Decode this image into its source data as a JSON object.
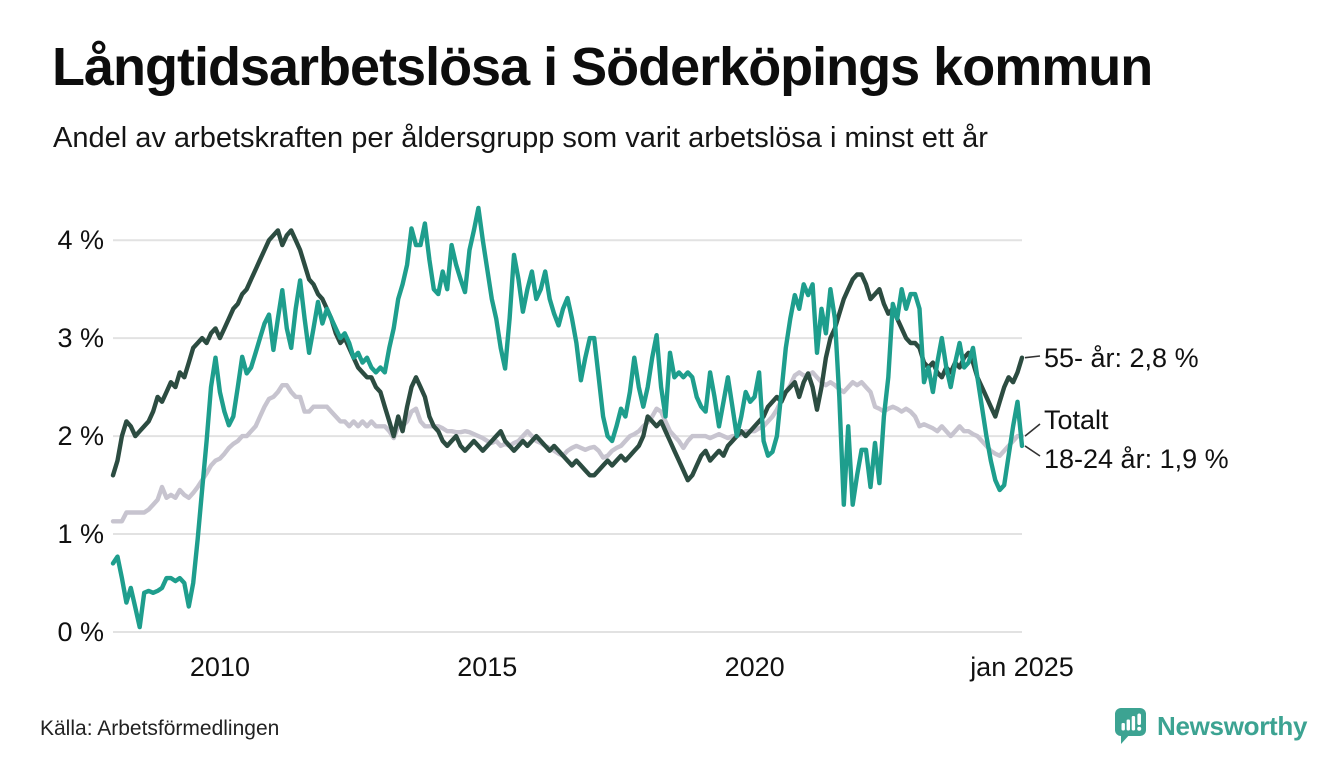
{
  "header": {
    "title": "Långtidsarbetslösa i Söderköpings kommun",
    "subtitle": "Andel av arbetskraften per åldersgrupp som varit arbetslösa i minst ett år"
  },
  "footer": {
    "source": "Källa: Arbetsförmedlingen",
    "brand": {
      "name": "Newsworthy",
      "color": "#3CA392",
      "icon": "newsworthy-speech-bubble-bar-chart-icon"
    }
  },
  "colors": {
    "series_55": "#2C4C41",
    "series_total": "#C7C4CF",
    "series_1824": "#1E9E8D",
    "gridline": "#E2E2E2",
    "connector": "#333333",
    "text": "#111111"
  },
  "chart_data": {
    "type": "line",
    "title": "Långtidsarbetslösa i Söderköpings kommun",
    "subtitle": "Andel av arbetskraften per åldersgrupp som varit arbetslösa i minst ett år",
    "x_unit": "month",
    "x_start": "2008-01",
    "x_end": "2025-01",
    "ylim": [
      0,
      4.6
    ],
    "grid": "horizontal",
    "legend_position": "end-of-line labels, right of plot",
    "y_ticks": [
      {
        "label": "0 %",
        "value": 0
      },
      {
        "label": "1 %",
        "value": 1
      },
      {
        "label": "2 %",
        "value": 2
      },
      {
        "label": "3 %",
        "value": 3
      },
      {
        "label": "4 %",
        "value": 4
      }
    ],
    "x_ticks": [
      {
        "label": "2010",
        "month": 24
      },
      {
        "label": "2015",
        "month": 84
      },
      {
        "label": "2020",
        "month": 144
      },
      {
        "label": "jan 2025",
        "month": 204
      }
    ],
    "series": [
      {
        "name": "55- år",
        "end_label": "55- år: 2,8 %",
        "color": "#2C4C41",
        "z": 2,
        "values": [
          1.6,
          1.75,
          2.0,
          2.15,
          2.1,
          2.0,
          2.05,
          2.1,
          2.15,
          2.25,
          2.4,
          2.35,
          2.45,
          2.55,
          2.5,
          2.65,
          2.6,
          2.75,
          2.9,
          2.95,
          3.0,
          2.95,
          3.05,
          3.1,
          3.0,
          3.1,
          3.2,
          3.3,
          3.35,
          3.45,
          3.5,
          3.6,
          3.7,
          3.8,
          3.9,
          4.0,
          4.05,
          4.1,
          3.95,
          4.05,
          4.1,
          4.0,
          3.9,
          3.75,
          3.6,
          3.55,
          3.45,
          3.4,
          3.3,
          3.2,
          3.05,
          2.95,
          3.0,
          2.9,
          2.8,
          2.7,
          2.65,
          2.6,
          2.6,
          2.5,
          2.45,
          2.3,
          2.15,
          2.0,
          2.2,
          2.05,
          2.3,
          2.5,
          2.6,
          2.5,
          2.4,
          2.2,
          2.1,
          2.05,
          1.95,
          1.9,
          1.95,
          2.0,
          1.9,
          1.85,
          1.9,
          1.95,
          1.9,
          1.85,
          1.9,
          1.95,
          2.0,
          2.05,
          1.95,
          1.9,
          1.85,
          1.9,
          1.95,
          1.9,
          1.95,
          2.0,
          1.95,
          1.9,
          1.85,
          1.9,
          1.85,
          1.8,
          1.75,
          1.7,
          1.75,
          1.7,
          1.65,
          1.6,
          1.6,
          1.65,
          1.7,
          1.75,
          1.7,
          1.75,
          1.8,
          1.75,
          1.8,
          1.85,
          1.9,
          2.0,
          2.2,
          2.15,
          2.1,
          2.15,
          2.05,
          1.95,
          1.85,
          1.75,
          1.65,
          1.55,
          1.6,
          1.7,
          1.8,
          1.85,
          1.75,
          1.8,
          1.85,
          1.8,
          1.9,
          1.95,
          2.0,
          2.05,
          2.0,
          2.05,
          2.1,
          2.15,
          2.2,
          2.3,
          2.35,
          2.4,
          2.35,
          2.45,
          2.5,
          2.55,
          2.4,
          2.55,
          2.64,
          2.5,
          2.27,
          2.5,
          2.8,
          3.0,
          3.1,
          3.25,
          3.4,
          3.5,
          3.6,
          3.65,
          3.65,
          3.55,
          3.4,
          3.45,
          3.5,
          3.35,
          3.25,
          3.3,
          3.2,
          3.1,
          3.0,
          2.95,
          2.95,
          2.9,
          2.75,
          2.7,
          2.75,
          2.65,
          2.6,
          2.7,
          2.65,
          2.75,
          2.7,
          2.8,
          2.85,
          2.75,
          2.6,
          2.5,
          2.4,
          2.3,
          2.2,
          2.35,
          2.5,
          2.6,
          2.55,
          2.65,
          2.8
        ]
      },
      {
        "name": "Totalt",
        "end_label": "Totalt",
        "color": "#C7C4CF",
        "z": 1,
        "values": [
          1.13,
          1.13,
          1.13,
          1.22,
          1.22,
          1.22,
          1.22,
          1.22,
          1.25,
          1.3,
          1.35,
          1.48,
          1.37,
          1.4,
          1.37,
          1.45,
          1.4,
          1.37,
          1.42,
          1.48,
          1.55,
          1.62,
          1.7,
          1.75,
          1.77,
          1.82,
          1.88,
          1.92,
          1.95,
          2.0,
          2.0,
          2.05,
          2.1,
          2.2,
          2.3,
          2.38,
          2.4,
          2.45,
          2.52,
          2.52,
          2.45,
          2.4,
          2.4,
          2.25,
          2.25,
          2.3,
          2.3,
          2.3,
          2.3,
          2.25,
          2.2,
          2.15,
          2.15,
          2.1,
          2.15,
          2.1,
          2.15,
          2.1,
          2.15,
          2.1,
          2.1,
          2.1,
          2.05,
          1.98,
          2.1,
          2.1,
          2.15,
          2.25,
          2.28,
          2.15,
          2.1,
          2.1,
          2.1,
          2.1,
          2.08,
          2.05,
          2.05,
          2.04,
          2.04,
          2.05,
          2.04,
          2.02,
          2.0,
          1.98,
          1.95,
          1.93,
          1.95,
          1.9,
          1.92,
          1.9,
          1.93,
          1.95,
          2.0,
          2.05,
          2.0,
          1.95,
          1.93,
          1.9,
          1.88,
          1.85,
          1.82,
          1.8,
          1.85,
          1.88,
          1.9,
          1.88,
          1.86,
          1.88,
          1.89,
          1.85,
          1.78,
          1.8,
          1.85,
          1.88,
          1.9,
          1.95,
          2.0,
          2.02,
          2.05,
          2.1,
          2.14,
          2.2,
          2.28,
          2.25,
          2.15,
          2.05,
          2.0,
          1.95,
          1.88,
          1.95,
          2.0,
          2.0,
          2.0,
          2.0,
          1.98,
          2.0,
          2.02,
          2.0,
          1.98,
          2.0,
          2.0,
          2.02,
          2.05,
          2.05,
          2.05,
          2.08,
          2.1,
          2.15,
          2.2,
          2.27,
          2.37,
          2.45,
          2.52,
          2.62,
          2.65,
          2.62,
          2.62,
          2.65,
          2.6,
          2.55,
          2.52,
          2.55,
          2.52,
          2.48,
          2.45,
          2.5,
          2.55,
          2.52,
          2.55,
          2.5,
          2.45,
          2.3,
          2.28,
          2.25,
          2.28,
          2.3,
          2.28,
          2.25,
          2.28,
          2.25,
          2.2,
          2.1,
          2.12,
          2.1,
          2.08,
          2.05,
          2.1,
          2.05,
          2.0,
          2.05,
          2.1,
          2.05,
          2.05,
          2.02,
          2.0,
          1.95,
          1.9,
          1.85,
          1.82,
          1.8,
          1.85,
          1.9,
          1.95,
          2.0,
          2.0
        ]
      },
      {
        "name": "18-24 år",
        "end_label": "18-24 år: 1,9 %",
        "color": "#1E9E8D",
        "z": 3,
        "values": [
          0.7,
          0.77,
          0.55,
          0.3,
          0.45,
          0.25,
          0.05,
          0.4,
          0.42,
          0.4,
          0.42,
          0.45,
          0.55,
          0.55,
          0.52,
          0.55,
          0.5,
          0.26,
          0.5,
          0.95,
          1.45,
          1.95,
          2.5,
          2.8,
          2.45,
          2.25,
          2.11,
          2.2,
          2.5,
          2.81,
          2.64,
          2.7,
          2.85,
          3.0,
          3.15,
          3.24,
          2.88,
          3.2,
          3.49,
          3.1,
          2.9,
          3.3,
          3.59,
          3.2,
          2.85,
          3.1,
          3.37,
          3.15,
          3.3,
          3.2,
          3.1,
          3.0,
          3.05,
          2.95,
          2.8,
          2.85,
          2.75,
          2.8,
          2.7,
          2.65,
          2.7,
          2.65,
          2.9,
          3.1,
          3.4,
          3.55,
          3.75,
          4.12,
          3.95,
          3.95,
          4.17,
          3.8,
          3.5,
          3.45,
          3.68,
          3.5,
          3.95,
          3.75,
          3.6,
          3.47,
          3.9,
          4.1,
          4.33,
          4.0,
          3.7,
          3.4,
          3.2,
          2.9,
          2.69,
          3.2,
          3.85,
          3.6,
          3.27,
          3.5,
          3.68,
          3.4,
          3.5,
          3.68,
          3.4,
          3.25,
          3.13,
          3.3,
          3.41,
          3.2,
          2.95,
          2.57,
          2.8,
          3.0,
          3.0,
          2.6,
          2.2,
          2.0,
          1.95,
          2.1,
          2.28,
          2.2,
          2.45,
          2.8,
          2.5,
          2.3,
          2.5,
          2.8,
          3.03,
          2.5,
          2.2,
          2.85,
          2.6,
          2.65,
          2.6,
          2.65,
          2.6,
          2.4,
          2.3,
          2.25,
          2.65,
          2.4,
          2.1,
          2.35,
          2.6,
          2.3,
          2.0,
          2.2,
          2.45,
          2.35,
          2.4,
          2.65,
          1.95,
          1.8,
          1.84,
          2.0,
          2.45,
          2.9,
          3.2,
          3.44,
          3.3,
          3.55,
          3.44,
          3.55,
          2.85,
          3.3,
          3.05,
          3.5,
          3.2,
          2.4,
          1.3,
          2.1,
          1.3,
          1.6,
          1.86,
          1.86,
          1.48,
          1.93,
          1.52,
          2.2,
          2.6,
          3.35,
          3.2,
          3.5,
          3.3,
          3.45,
          3.45,
          3.3,
          2.55,
          2.7,
          2.45,
          2.75,
          3.0,
          2.7,
          2.5,
          2.75,
          2.95,
          2.7,
          2.75,
          2.9,
          2.6,
          2.3,
          2.0,
          1.75,
          1.55,
          1.45,
          1.5,
          1.8,
          2.1,
          2.35,
          1.9
        ]
      }
    ]
  }
}
